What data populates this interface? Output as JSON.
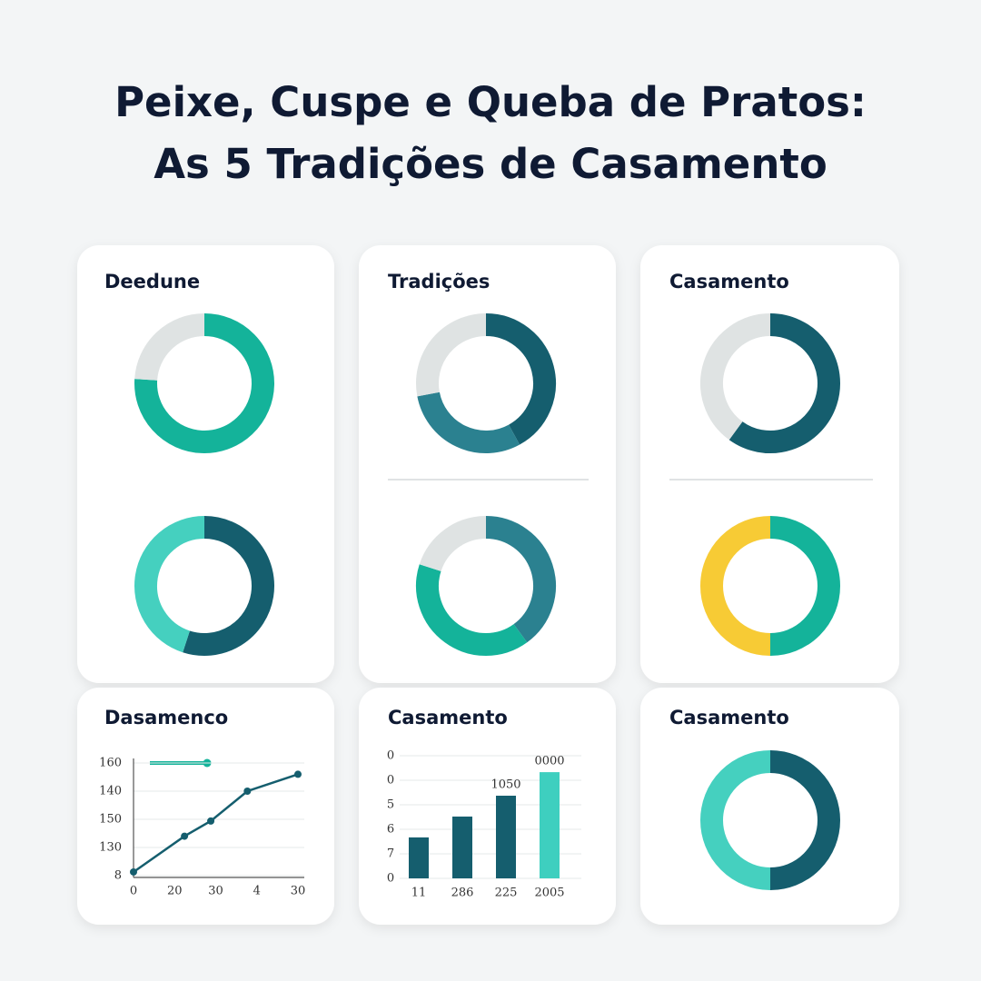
{
  "title_lines": [
    "Peixe, Cuspe e Queba de Pratos:",
    "As 5 Tradições de Casamento"
  ],
  "chart_data": [
    {
      "type": "donut",
      "title": "Deedune",
      "values": [
        76,
        24
      ],
      "colors": [
        "#14b39a",
        "#dfe3e3"
      ]
    },
    {
      "type": "donut",
      "values": [
        55,
        45
      ],
      "colors": [
        "#155e6e",
        "#45d0bf"
      ]
    },
    {
      "type": "donut",
      "title": "Tradições",
      "values": [
        42,
        30,
        28
      ],
      "colors": [
        "#155e6e",
        "#2b8190",
        "#dfe3e3"
      ]
    },
    {
      "type": "donut",
      "values": [
        40,
        40,
        20
      ],
      "colors": [
        "#2b8190",
        "#14b39a",
        "#dfe3e3"
      ]
    },
    {
      "type": "donut",
      "title": "Casamento",
      "values": [
        60,
        40
      ],
      "colors": [
        "#155e6e",
        "#dfe3e3"
      ]
    },
    {
      "type": "donut",
      "values": [
        50,
        50
      ],
      "colors": [
        "#14b39a",
        "#f7cb35"
      ]
    },
    {
      "type": "line",
      "title": "Dasamenco",
      "color": "#155e6e",
      "x": [
        0,
        1.24,
        1.88,
        2.77,
        4
      ],
      "values": [
        0.13,
        1.4,
        1.94,
        3.0,
        3.6
      ],
      "xlim": [
        0,
        4
      ],
      "xticks": [
        {
          "value": 0,
          "label": "0"
        },
        {
          "value": 1,
          "label": "20"
        },
        {
          "value": 2,
          "label": "30"
        },
        {
          "value": 3,
          "label": "4"
        },
        {
          "value": 4,
          "label": "30"
        }
      ],
      "ylim": [
        0,
        4
      ],
      "yticks": [
        {
          "value": 0,
          "label": "8"
        },
        {
          "value": 1,
          "label": "130"
        },
        {
          "value": 2,
          "label": "150"
        },
        {
          "value": 3,
          "label": "140"
        },
        {
          "value": 4,
          "label": "160"
        }
      ],
      "grid": true
    },
    {
      "type": "bar",
      "title": "Casamento",
      "categories": [
        "11",
        "286",
        "225",
        "2005"
      ],
      "values": [
        1.67,
        2.52,
        3.37,
        4.33
      ],
      "value_labels": [
        null,
        null,
        "1050",
        "0000"
      ],
      "colors": [
        "#155e6e",
        "#155e6e",
        "#155e6e",
        "#3ecfbf"
      ],
      "ylim": [
        0,
        5
      ],
      "yticks": [
        {
          "value": 0,
          "label": "0"
        },
        {
          "value": 1,
          "label": "7"
        },
        {
          "value": 2,
          "label": "6"
        },
        {
          "value": 3,
          "label": "5"
        },
        {
          "value": 4,
          "label": "0"
        },
        {
          "value": 5,
          "label": "0"
        }
      ],
      "grid": true
    },
    {
      "type": "donut",
      "title": "Casamento",
      "values": [
        50,
        50
      ],
      "colors": [
        "#155e6e",
        "#45d0bf"
      ]
    }
  ]
}
